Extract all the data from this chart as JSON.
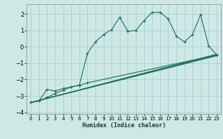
{
  "xlabel": "Humidex (Indice chaleur)",
  "background_color": "#cde8e5",
  "grid_color": "#aad0cc",
  "line_color": "#1a6b5a",
  "xlim": [
    -0.5,
    23.5
  ],
  "ylim": [
    -4.1,
    2.6
  ],
  "yticks": [
    -4,
    -3,
    -2,
    -1,
    0,
    1,
    2
  ],
  "xticks": [
    0,
    1,
    2,
    3,
    4,
    5,
    6,
    7,
    8,
    9,
    10,
    11,
    12,
    13,
    14,
    15,
    16,
    17,
    18,
    19,
    20,
    21,
    22,
    23
  ],
  "curve1_x": [
    0,
    1,
    2,
    3,
    4,
    5,
    6,
    7,
    8,
    9,
    10,
    11,
    12,
    13,
    14,
    15,
    16,
    17,
    18,
    19,
    20,
    21,
    22,
    23
  ],
  "curve1_y": [
    -3.4,
    -3.3,
    -3.1,
    -2.85,
    -2.65,
    -2.45,
    -2.35,
    -0.4,
    0.3,
    0.75,
    1.05,
    1.8,
    0.95,
    1.0,
    1.6,
    2.1,
    2.1,
    1.7,
    0.65,
    0.3,
    0.75,
    1.95,
    0.05,
    -0.5
  ],
  "curve2_x": [
    0,
    1,
    2,
    3,
    4,
    5,
    6,
    7,
    23
  ],
  "curve2_y": [
    -3.4,
    -3.3,
    -2.6,
    -2.7,
    -2.55,
    -2.45,
    -2.35,
    -2.2,
    -0.5
  ],
  "line1_x": [
    0,
    23
  ],
  "line1_y": [
    -3.4,
    -0.5
  ],
  "line2_x": [
    0,
    23
  ],
  "line2_y": [
    -3.4,
    -0.45
  ],
  "line3_x": [
    0,
    23
  ],
  "line3_y": [
    -3.4,
    -0.55
  ]
}
